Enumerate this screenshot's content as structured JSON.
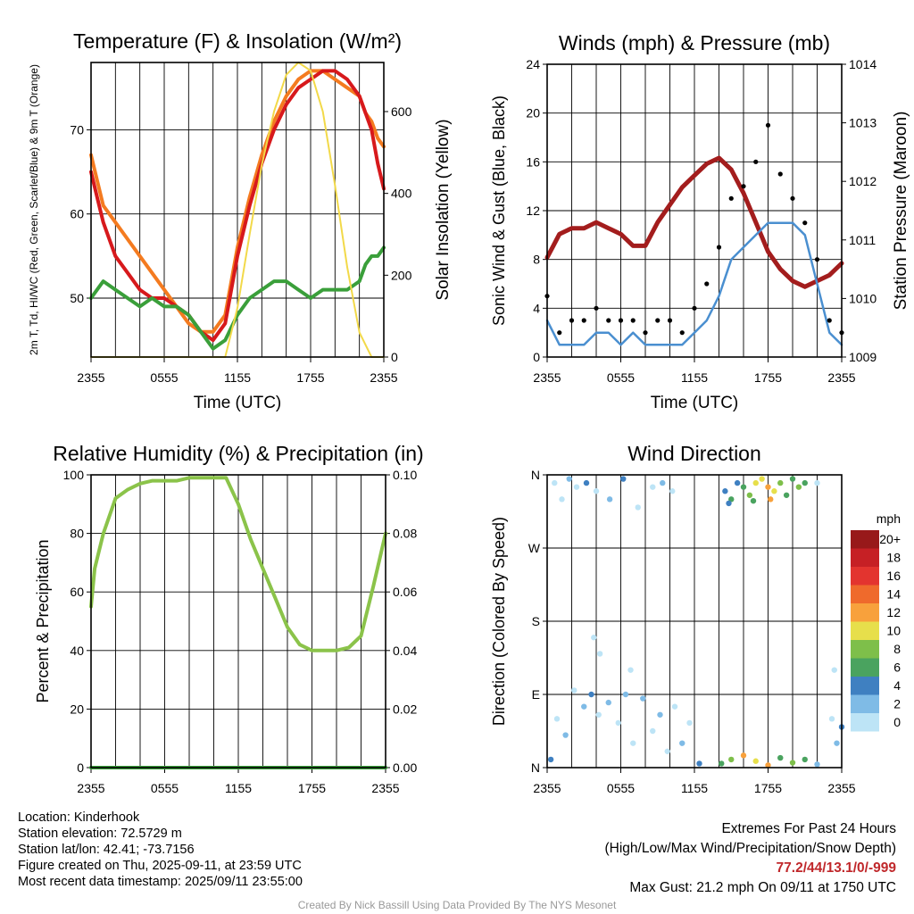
{
  "chart_data": [
    {
      "id": "temp",
      "type": "line",
      "title": "Temperature (F) & Insolation (W/m²)",
      "xlabel": "Time (UTC)",
      "ylabel": "2m T, Td, HI/WC (Red, Green, Scarlet/Blue) & 9m T (Orange)",
      "ylabel_right": "Solar Insolation (Yellow)",
      "x_ticks": [
        "2355",
        "0555",
        "1155",
        "1755",
        "2355"
      ],
      "y_ticks": [
        50,
        60,
        70
      ],
      "y_ticks_right": [
        0,
        200,
        400,
        600
      ],
      "ylim": [
        43,
        78
      ],
      "ylim_right": [
        0,
        720
      ],
      "grid": true,
      "series": [
        {
          "axis": "left",
          "color": "#f47b20",
          "x": [
            0,
            0.5,
            1,
            2,
            3,
            4,
            5,
            6,
            7,
            8,
            9,
            10,
            11,
            12,
            13,
            14,
            15,
            16,
            17,
            18,
            19,
            20,
            21,
            22,
            22.5,
            23,
            23.5,
            24
          ],
          "values": [
            67,
            64,
            61,
            59,
            57,
            55,
            53,
            51,
            49,
            47,
            46,
            46,
            48,
            56,
            62,
            67,
            71,
            74,
            76,
            77,
            77,
            76,
            75,
            74,
            72,
            71,
            69,
            68
          ]
        },
        {
          "axis": "left",
          "color": "#d7191c",
          "x": [
            0,
            0.5,
            1,
            2,
            3,
            4,
            5,
            6,
            7,
            8,
            9,
            10,
            11,
            12,
            13,
            14,
            15,
            16,
            17,
            18,
            19,
            20,
            21,
            22,
            22.5,
            23,
            23.5,
            24
          ],
          "values": [
            65,
            62,
            59,
            55,
            53,
            51,
            50,
            50,
            49,
            48,
            46,
            45,
            47,
            55,
            61,
            66,
            70,
            73,
            75,
            76,
            77,
            77,
            76,
            74,
            72,
            70,
            66,
            63
          ]
        },
        {
          "axis": "left",
          "color": "#3a9f3a",
          "x": [
            0,
            0.5,
            1,
            2,
            3,
            4,
            5,
            6,
            7,
            8,
            9,
            10,
            11,
            12,
            13,
            14,
            15,
            16,
            17,
            18,
            19,
            20,
            21,
            22,
            22.5,
            23,
            23.5,
            24
          ],
          "values": [
            50,
            51,
            52,
            51,
            50,
            49,
            50,
            49,
            49,
            48,
            46,
            44,
            45,
            48,
            50,
            51,
            52,
            52,
            51,
            50,
            51,
            51,
            51,
            52,
            54,
            55,
            55,
            56
          ]
        },
        {
          "axis": "right",
          "color": "#f2d949",
          "x": [
            0,
            8,
            9,
            10,
            11,
            12,
            13,
            14,
            15,
            16,
            17,
            18,
            19,
            20,
            21,
            22,
            23,
            24
          ],
          "values": [
            0,
            0,
            0,
            0,
            0,
            120,
            300,
            470,
            600,
            690,
            720,
            700,
            600,
            420,
            220,
            60,
            0,
            0
          ]
        }
      ]
    },
    {
      "id": "wind",
      "type": "line",
      "title": "Winds (mph) & Pressure (mb)",
      "xlabel": "Time (UTC)",
      "ylabel": "Sonic Wind & Gust (Blue, Black)",
      "ylabel_right": "Station Pressure (Maroon)",
      "x_ticks": [
        "2355",
        "0555",
        "1155",
        "1755",
        "2355"
      ],
      "y_ticks": [
        0,
        4,
        8,
        12,
        16,
        20,
        24
      ],
      "y_ticks_right": [
        1009,
        1010,
        1011,
        1012,
        1013,
        1014
      ],
      "ylim": [
        0,
        24
      ],
      "ylim_right": [
        1009,
        1014
      ],
      "grid": true,
      "series": [
        {
          "axis": "right",
          "color": "#a31d1d",
          "x": [
            0,
            0.5,
            1,
            2,
            3,
            4,
            5,
            6,
            7,
            8,
            9,
            10,
            11,
            12,
            13,
            14,
            15,
            16,
            17,
            18,
            19,
            20,
            21,
            22,
            23,
            24
          ],
          "values": [
            1010.7,
            1010.9,
            1011.1,
            1011.2,
            1011.2,
            1011.3,
            1011.2,
            1011.1,
            1010.9,
            1010.9,
            1011.3,
            1011.6,
            1011.9,
            1012.1,
            1012.3,
            1012.4,
            1012.2,
            1011.8,
            1011.3,
            1010.8,
            1010.5,
            1010.3,
            1010.2,
            1010.3,
            1010.4,
            1010.6
          ]
        },
        {
          "axis": "left",
          "color": "#4a8fd0",
          "x": [
            0,
            1,
            2,
            3,
            4,
            5,
            6,
            7,
            8,
            9,
            10,
            11,
            12,
            13,
            14,
            15,
            16,
            17,
            18,
            19,
            20,
            21,
            22,
            23,
            24
          ],
          "values": [
            3,
            1,
            1,
            1,
            2,
            2,
            1,
            2,
            1,
            1,
            1,
            1,
            2,
            3,
            5,
            8,
            9,
            10,
            11,
            11,
            11,
            10,
            6,
            2,
            1
          ]
        },
        {
          "axis": "left",
          "color": "#000000",
          "kind": "dots",
          "x": [
            0,
            1,
            2,
            3,
            4,
            5,
            6,
            7,
            8,
            9,
            10,
            11,
            12,
            13,
            14,
            15,
            16,
            17,
            18,
            19,
            20,
            21,
            22,
            23,
            24
          ],
          "values": [
            5,
            2,
            3,
            3,
            4,
            3,
            3,
            3,
            2,
            3,
            3,
            2,
            4,
            6,
            9,
            13,
            14,
            16,
            19,
            15,
            13,
            11,
            8,
            3,
            2
          ]
        }
      ]
    },
    {
      "id": "rh",
      "type": "line",
      "title": "Relative Humidity (%) & Precipitation (in)",
      "xlabel": "",
      "ylabel": "Percent & Precipitation",
      "x_ticks": [
        "2355",
        "0555",
        "1155",
        "1755",
        "2355"
      ],
      "y_ticks": [
        0,
        20,
        40,
        60,
        80,
        100
      ],
      "y_ticks_right": [
        "0.00",
        "0.02",
        "0.04",
        "0.06",
        "0.08",
        "0.10"
      ],
      "ylim": [
        0,
        100
      ],
      "ylim_right": [
        0,
        0.1
      ],
      "grid": true,
      "series": [
        {
          "axis": "left",
          "color": "#8bc34a",
          "x": [
            0,
            0.3,
            1,
            2,
            3,
            4,
            5,
            6,
            7,
            8,
            9,
            10,
            11,
            12,
            13,
            14,
            15,
            16,
            17,
            18,
            19,
            20,
            21,
            22,
            23,
            24
          ],
          "values": [
            55,
            68,
            80,
            92,
            95,
            97,
            98,
            98,
            98,
            99,
            99,
            99,
            99,
            90,
            78,
            68,
            58,
            48,
            42,
            40,
            40,
            40,
            41,
            45,
            62,
            80
          ]
        },
        {
          "axis": "left",
          "color": "#3a9f3a",
          "x": [
            0,
            24
          ],
          "values": [
            0,
            0
          ]
        }
      ]
    },
    {
      "id": "dir",
      "type": "scatter",
      "title": "Wind Direction",
      "xlabel": "",
      "ylabel": "Direction (Colored By Speed)",
      "x_ticks": [
        "2355",
        "0555",
        "1155",
        "1755",
        "2355"
      ],
      "y_ticks": [
        "N",
        "E",
        "S",
        "W",
        "N"
      ],
      "ylim": [
        0,
        360
      ],
      "grid": true,
      "legend": {
        "title": "mph",
        "labels": [
          "20+",
          "18",
          "16",
          "14",
          "12",
          "10",
          "8",
          "6",
          "4",
          "2",
          "0"
        ],
        "colors": [
          "#98191a",
          "#c62025",
          "#e3342f",
          "#ef6a2c",
          "#f8a13c",
          "#e7df4b",
          "#7ebf4a",
          "#4aa35f",
          "#3f80c1",
          "#7fbbe6",
          "#bde4f6"
        ]
      },
      "points": [
        [
          0.6,
          350,
          "#bde4f6"
        ],
        [
          1.2,
          330,
          "#bde4f6"
        ],
        [
          1.8,
          355,
          "#7fbbe6"
        ],
        [
          2.4,
          345,
          "#bde4f6"
        ],
        [
          3.2,
          350,
          "#3f80c1"
        ],
        [
          4,
          340,
          "#bde4f6"
        ],
        [
          5.1,
          330,
          "#7fbbe6"
        ],
        [
          6.2,
          355,
          "#3f80c1"
        ],
        [
          7.4,
          320,
          "#bde4f6"
        ],
        [
          8.6,
          345,
          "#bde4f6"
        ],
        [
          9.4,
          350,
          "#7fbbe6"
        ],
        [
          10.2,
          340,
          "#bde4f6"
        ],
        [
          14.5,
          340,
          "#3f80c1"
        ],
        [
          15,
          330,
          "#4aa35f"
        ],
        [
          15.5,
          350,
          "#3f80c1"
        ],
        [
          16,
          345,
          "#4aa35f"
        ],
        [
          16.5,
          335,
          "#7ebf4a"
        ],
        [
          17,
          350,
          "#e7df4b"
        ],
        [
          17.5,
          355,
          "#e7df4b"
        ],
        [
          18,
          345,
          "#f8a13c"
        ],
        [
          18.5,
          340,
          "#e7df4b"
        ],
        [
          19,
          350,
          "#7ebf4a"
        ],
        [
          19.5,
          335,
          "#4aa35f"
        ],
        [
          20,
          355,
          "#4aa35f"
        ],
        [
          20.5,
          345,
          "#7ebf4a"
        ],
        [
          21,
          350,
          "#4aa35f"
        ],
        [
          22,
          350,
          "#bde4f6"
        ],
        [
          14.8,
          325,
          "#3f80c1"
        ],
        [
          16.8,
          328,
          "#4aa35f"
        ],
        [
          18.2,
          330,
          "#f8a13c"
        ],
        [
          0.3,
          10,
          "#3f80c1"
        ],
        [
          0.8,
          60,
          "#bde4f6"
        ],
        [
          1.5,
          40,
          "#7fbbe6"
        ],
        [
          2.2,
          95,
          "#bde4f6"
        ],
        [
          3,
          75,
          "#7fbbe6"
        ],
        [
          3.6,
          90,
          "#3f80c1"
        ],
        [
          4.2,
          65,
          "#bde4f6"
        ],
        [
          5,
          80,
          "#7fbbe6"
        ],
        [
          5.8,
          55,
          "#bde4f6"
        ],
        [
          6.4,
          90,
          "#7fbbe6"
        ],
        [
          7,
          30,
          "#bde4f6"
        ],
        [
          7.8,
          85,
          "#7fbbe6"
        ],
        [
          8.6,
          45,
          "#bde4f6"
        ],
        [
          9.2,
          65,
          "#7fbbe6"
        ],
        [
          9.8,
          20,
          "#bde4f6"
        ],
        [
          10.4,
          75,
          "#bde4f6"
        ],
        [
          11,
          30,
          "#7fbbe6"
        ],
        [
          11.6,
          55,
          "#bde4f6"
        ],
        [
          12.4,
          5,
          "#3f80c1"
        ],
        [
          3.8,
          160,
          "#bde4f6"
        ],
        [
          4.3,
          140,
          "#bde4f6"
        ],
        [
          6.8,
          120,
          "#bde4f6"
        ],
        [
          14.2,
          5,
          "#4aa35f"
        ],
        [
          15,
          10,
          "#7ebf4a"
        ],
        [
          16,
          15,
          "#f8a13c"
        ],
        [
          17,
          8,
          "#e7df4b"
        ],
        [
          18,
          3,
          "#f8a13c"
        ],
        [
          19,
          12,
          "#4aa35f"
        ],
        [
          20,
          6,
          "#7ebf4a"
        ],
        [
          21,
          10,
          "#4aa35f"
        ],
        [
          22,
          4,
          "#7fbbe6"
        ],
        [
          23.2,
          60,
          "#bde4f6"
        ],
        [
          23.6,
          30,
          "#7fbbe6"
        ],
        [
          24,
          50,
          "#3f80c1"
        ],
        [
          23.4,
          120,
          "#bde4f6"
        ]
      ]
    }
  ],
  "info": {
    "location": "Location: Kinderhook",
    "elevation": "Station elevation: 72.5729 m",
    "latlon": "Station lat/lon: 42.41; -73.7156",
    "created": "Figure created on Thu, 2025-09-11, at 23:59 UTC",
    "recent": "Most recent data timestamp: 2025/09/11 23:55:00"
  },
  "extremes": {
    "title": "Extremes For Past 24 Hours",
    "subtitle": "(High/Low/Max Wind/Precipitation/Snow Depth)",
    "values": "77.2/44/13.1/0/-999",
    "gust": "Max Gust: 21.2 mph On 09/11 at 1750 UTC"
  },
  "credit": "Created By Nick Bassill Using Data Provided By The NYS Mesonet"
}
